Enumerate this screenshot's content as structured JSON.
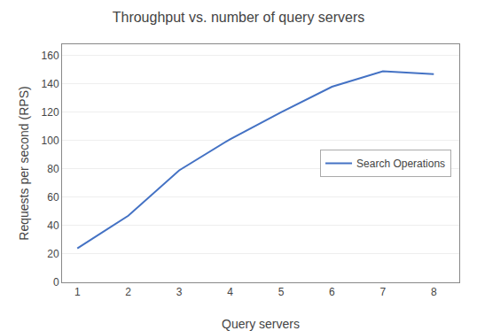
{
  "chart_data": {
    "type": "line",
    "title": "Throughput vs. number of query servers",
    "xlabel": "Query servers",
    "ylabel": "Requests per second (RPS)",
    "x": [
      1,
      2,
      3,
      4,
      5,
      6,
      7,
      8
    ],
    "series": [
      {
        "name": "Search Operations",
        "color": "#4472C4",
        "values": [
          24,
          47,
          79,
          101,
          120,
          138,
          149,
          147
        ]
      }
    ],
    "xlim": [
      0.7,
      8.5
    ],
    "ylim": [
      0,
      168
    ],
    "xticks": [
      1,
      2,
      3,
      4,
      5,
      6,
      7,
      8
    ],
    "yticks": [
      0,
      20,
      40,
      60,
      80,
      100,
      120,
      140,
      160
    ],
    "grid": "y",
    "legend": "right"
  }
}
